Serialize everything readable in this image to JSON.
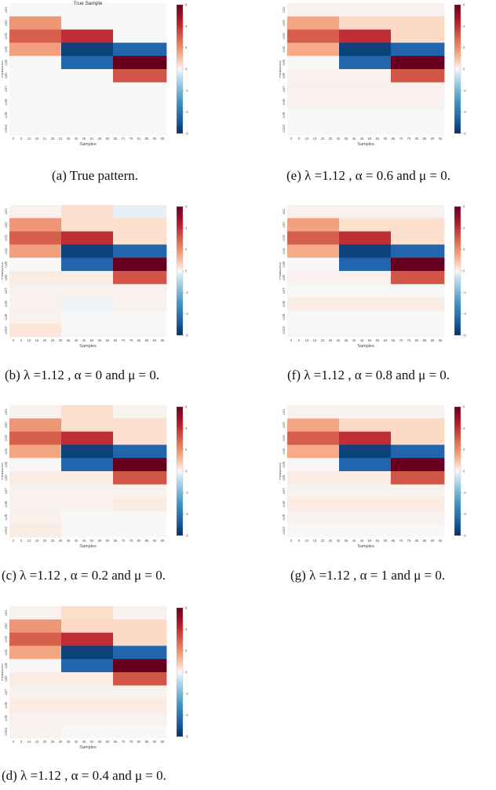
{
  "figure": {
    "panels": [
      {
        "id": "a",
        "caption": "(a) True pattern.",
        "title": "True Sample",
        "xlabel": "Samples",
        "ylabel": "Features",
        "x_ticks": [
          "0",
          "5",
          "10",
          "15",
          "21",
          "25",
          "31",
          "35",
          "40",
          "45",
          "51",
          "55",
          "60",
          "65",
          "71",
          "75",
          "81",
          "85",
          "90",
          "95"
        ],
        "y_ticks": [
          "col1",
          "col2",
          "col3",
          "col4",
          "col5",
          "col6",
          "col7",
          "col8",
          "col9",
          "col10"
        ],
        "colorbar_ticks": [
          "6",
          "4",
          "2",
          "0",
          "-2",
          "-4",
          "-6"
        ]
      },
      {
        "id": "e",
        "caption": "(e) λ =1.12 , α = 0.6 and μ = 0.",
        "title": "",
        "xlabel": "Samples",
        "ylabel": "Features",
        "x_ticks": [
          "0",
          "5",
          "10",
          "15",
          "20",
          "25",
          "30",
          "35",
          "40",
          "45",
          "50",
          "55",
          "60",
          "65",
          "70",
          "75",
          "80",
          "85",
          "90",
          "95"
        ],
        "y_ticks": [
          "col1",
          "col2",
          "col3",
          "col4",
          "col5",
          "col6",
          "col7",
          "col8",
          "col9",
          "col10"
        ],
        "colorbar_ticks": [
          "6",
          "4",
          "2",
          "0",
          "-2",
          "-4",
          "-6"
        ]
      },
      {
        "id": "b",
        "caption": "(b) λ =1.12 , α = 0 and μ = 0.",
        "title": "",
        "xlabel": "Samples",
        "ylabel": "Features",
        "x_ticks": [
          "0",
          "5",
          "10",
          "15",
          "20",
          "25",
          "30",
          "35",
          "40",
          "45",
          "50",
          "55",
          "60",
          "65",
          "70",
          "75",
          "80",
          "85",
          "90",
          "95"
        ],
        "y_ticks": [
          "col1",
          "col2",
          "col3",
          "col4",
          "col5",
          "col6",
          "col7",
          "col8",
          "col9",
          "col10"
        ],
        "colorbar_ticks": [
          "6",
          "4",
          "2",
          "0",
          "-2",
          "-4",
          "-6"
        ]
      },
      {
        "id": "f",
        "caption": "(f) λ =1.12 , α = 0.8 and μ = 0.",
        "title": "",
        "xlabel": "Samples",
        "ylabel": "Features",
        "x_ticks": [
          "0",
          "5",
          "10",
          "15",
          "20",
          "25",
          "30",
          "35",
          "40",
          "45",
          "50",
          "55",
          "60",
          "65",
          "70",
          "75",
          "80",
          "85",
          "90",
          "95"
        ],
        "y_ticks": [
          "col1",
          "col2",
          "col3",
          "col4",
          "col5",
          "col6",
          "col7",
          "col8",
          "col9",
          "col10"
        ],
        "colorbar_ticks": [
          "6",
          "4",
          "2",
          "0",
          "-2",
          "-4",
          "-6"
        ]
      },
      {
        "id": "c",
        "caption": "(c) λ =1.12 , α = 0.2 and μ = 0.",
        "title": "",
        "xlabel": "Samples",
        "ylabel": "Features",
        "x_ticks": [
          "0",
          "5",
          "10",
          "15",
          "20",
          "25",
          "30",
          "35",
          "40",
          "45",
          "50",
          "55",
          "60",
          "65",
          "70",
          "75",
          "80",
          "85",
          "90",
          "95"
        ],
        "y_ticks": [
          "col1",
          "col2",
          "col3",
          "col4",
          "col5",
          "col6",
          "col7",
          "col8",
          "col9",
          "col10"
        ],
        "colorbar_ticks": [
          "6",
          "4",
          "2",
          "0",
          "-2",
          "-4",
          "-6"
        ]
      },
      {
        "id": "g",
        "caption": "(g) λ =1.12 , α = 1 and μ = 0.",
        "title": "",
        "xlabel": "Samples",
        "ylabel": "Features",
        "x_ticks": [
          "0",
          "5",
          "10",
          "15",
          "20",
          "25",
          "30",
          "35",
          "40",
          "45",
          "50",
          "55",
          "60",
          "65",
          "70",
          "75",
          "80",
          "85",
          "90",
          "95"
        ],
        "y_ticks": [
          "col1",
          "col2",
          "col3",
          "col4",
          "col5",
          "col6",
          "col7",
          "col8",
          "col9",
          "col10"
        ],
        "colorbar_ticks": [
          "6",
          "4",
          "2",
          "0",
          "-2",
          "-4",
          "-6"
        ]
      },
      {
        "id": "d",
        "caption": "(d) λ =1.12 , α = 0.4 and μ = 0.",
        "title": "",
        "xlabel": "Samples",
        "ylabel": "Features",
        "x_ticks": [
          "0",
          "5",
          "10",
          "15",
          "20",
          "25",
          "30",
          "35",
          "40",
          "45",
          "50",
          "55",
          "60",
          "65",
          "70",
          "75",
          "80",
          "85",
          "90",
          "95"
        ],
        "y_ticks": [
          "col1",
          "col2",
          "col3",
          "col4",
          "col5",
          "col6",
          "col7",
          "col8",
          "col9",
          "col10"
        ],
        "colorbar_ticks": [
          "6",
          "4",
          "2",
          "0",
          "-2",
          "-4",
          "-6"
        ]
      }
    ]
  },
  "chart_data": [
    {
      "type": "heatmap",
      "panel": "a",
      "title": "True Sample",
      "xlabel": "Samples",
      "ylabel": "Features",
      "rows": [
        "col1",
        "col2",
        "col3",
        "col4",
        "col5",
        "col6",
        "col7",
        "col8",
        "col9",
        "col10"
      ],
      "column_blocks": [
        [
          0,
          33
        ],
        [
          33,
          66
        ],
        [
          66,
          100
        ]
      ],
      "values": [
        [
          0,
          0,
          0
        ],
        [
          1.8,
          0,
          0
        ],
        [
          3.0,
          4.0,
          0
        ],
        [
          1.6,
          -5.5,
          -4.5
        ],
        [
          0,
          -4.5,
          6.5
        ],
        [
          0,
          0,
          3.2
        ],
        [
          0,
          0,
          0
        ],
        [
          0,
          0,
          0
        ],
        [
          0,
          0,
          0
        ],
        [
          0,
          0,
          0
        ]
      ],
      "colorbar_range": [
        -6,
        6
      ]
    },
    {
      "type": "heatmap",
      "panel": "e",
      "xlabel": "Samples",
      "ylabel": "Features",
      "rows": [
        "col1",
        "col2",
        "col3",
        "col4",
        "col5",
        "col6",
        "col7",
        "col8",
        "col9",
        "col10"
      ],
      "column_blocks": [
        [
          0,
          33
        ],
        [
          33,
          66
        ],
        [
          66,
          100
        ]
      ],
      "values": [
        [
          0.1,
          0.1,
          0.1
        ],
        [
          1.5,
          0.5,
          0.5
        ],
        [
          3.0,
          4.0,
          0.5
        ],
        [
          1.4,
          -5.5,
          -4.5
        ],
        [
          0,
          -4.5,
          6.5
        ],
        [
          0.1,
          0.1,
          3.2
        ],
        [
          0.1,
          0.1,
          0.1
        ],
        [
          0.1,
          0.1,
          0.1
        ],
        [
          0,
          0,
          0
        ],
        [
          0,
          0,
          0
        ]
      ],
      "colorbar_range": [
        -6,
        6
      ]
    },
    {
      "type": "heatmap",
      "panel": "b",
      "xlabel": "Samples",
      "ylabel": "Features",
      "rows": [
        "col1",
        "col2",
        "col3",
        "col4",
        "col5",
        "col6",
        "col7",
        "col8",
        "col9",
        "col10"
      ],
      "column_blocks": [
        [
          0,
          33
        ],
        [
          33,
          66
        ],
        [
          66,
          100
        ]
      ],
      "values": [
        [
          0.1,
          0.4,
          -0.2
        ],
        [
          1.8,
          0.4,
          0.4
        ],
        [
          3.0,
          4.0,
          0.4
        ],
        [
          1.6,
          -5.5,
          -4.5
        ],
        [
          0,
          -4.5,
          6.5
        ],
        [
          0.2,
          0.2,
          3.2
        ],
        [
          0.1,
          0.1,
          0.1
        ],
        [
          0.1,
          -0.1,
          0.1
        ],
        [
          0.1,
          0,
          0
        ],
        [
          0.3,
          0,
          0
        ]
      ],
      "colorbar_range": [
        -6,
        6
      ]
    },
    {
      "type": "heatmap",
      "panel": "f",
      "xlabel": "Samples",
      "ylabel": "Features",
      "rows": [
        "col1",
        "col2",
        "col3",
        "col4",
        "col5",
        "col6",
        "col7",
        "col8",
        "col9",
        "col10"
      ],
      "column_blocks": [
        [
          0,
          33
        ],
        [
          33,
          66
        ],
        [
          66,
          100
        ]
      ],
      "values": [
        [
          0.1,
          0.1,
          0.1
        ],
        [
          1.6,
          0.4,
          0.4
        ],
        [
          3.0,
          4.0,
          0.4
        ],
        [
          1.4,
          -5.5,
          -4.5
        ],
        [
          0,
          -4.5,
          6.5
        ],
        [
          0.1,
          0.1,
          3.2
        ],
        [
          0,
          0,
          0
        ],
        [
          0.2,
          0.2,
          0.2
        ],
        [
          0,
          0,
          0
        ],
        [
          0,
          0,
          0
        ]
      ],
      "colorbar_range": [
        -6,
        6
      ]
    },
    {
      "type": "heatmap",
      "panel": "c",
      "xlabel": "Samples",
      "ylabel": "Features",
      "rows": [
        "col1",
        "col2",
        "col3",
        "col4",
        "col5",
        "col6",
        "col7",
        "col8",
        "col9",
        "col10"
      ],
      "column_blocks": [
        [
          0,
          33
        ],
        [
          33,
          66
        ],
        [
          66,
          100
        ]
      ],
      "values": [
        [
          0.1,
          0.4,
          0.1
        ],
        [
          1.8,
          0.4,
          0.4
        ],
        [
          3.0,
          4.0,
          0.4
        ],
        [
          1.5,
          -5.5,
          -4.5
        ],
        [
          0,
          -4.5,
          6.5
        ],
        [
          0.2,
          0.2,
          3.2
        ],
        [
          0.1,
          0.1,
          0.1
        ],
        [
          0.1,
          0.1,
          0.2
        ],
        [
          0.1,
          0,
          0
        ],
        [
          0.2,
          0,
          0
        ]
      ],
      "colorbar_range": [
        -6,
        6
      ]
    },
    {
      "type": "heatmap",
      "panel": "g",
      "xlabel": "Samples",
      "ylabel": "Features",
      "rows": [
        "col1",
        "col2",
        "col3",
        "col4",
        "col5",
        "col6",
        "col7",
        "col8",
        "col9",
        "col10"
      ],
      "column_blocks": [
        [
          0,
          33
        ],
        [
          33,
          66
        ],
        [
          66,
          100
        ]
      ],
      "values": [
        [
          0.1,
          0.1,
          0.1
        ],
        [
          1.5,
          0.5,
          0.5
        ],
        [
          3.0,
          4.0,
          0.5
        ],
        [
          1.4,
          -5.5,
          -4.5
        ],
        [
          0,
          -4.5,
          6.5
        ],
        [
          0.2,
          0.2,
          3.2
        ],
        [
          0.1,
          0.1,
          0.1
        ],
        [
          0.2,
          0.2,
          0.2
        ],
        [
          0.1,
          0.1,
          0.1
        ],
        [
          0,
          0,
          0
        ]
      ],
      "colorbar_range": [
        -6,
        6
      ]
    },
    {
      "type": "heatmap",
      "panel": "d",
      "xlabel": "Samples",
      "ylabel": "Features",
      "rows": [
        "col1",
        "col2",
        "col3",
        "col4",
        "col5",
        "col6",
        "col7",
        "col8",
        "col9",
        "col10"
      ],
      "column_blocks": [
        [
          0,
          33
        ],
        [
          33,
          66
        ],
        [
          66,
          100
        ]
      ],
      "values": [
        [
          0.1,
          0.4,
          0.1
        ],
        [
          1.8,
          0.5,
          0.5
        ],
        [
          3.0,
          4.0,
          0.5
        ],
        [
          1.5,
          -5.5,
          -4.5
        ],
        [
          0,
          -4.5,
          6.5
        ],
        [
          0.2,
          0.2,
          3.2
        ],
        [
          0.1,
          0.1,
          0.1
        ],
        [
          0.2,
          0.2,
          0.2
        ],
        [
          0.1,
          0.1,
          0.1
        ],
        [
          0.1,
          0,
          0
        ]
      ],
      "colorbar_range": [
        -6,
        6
      ]
    }
  ]
}
